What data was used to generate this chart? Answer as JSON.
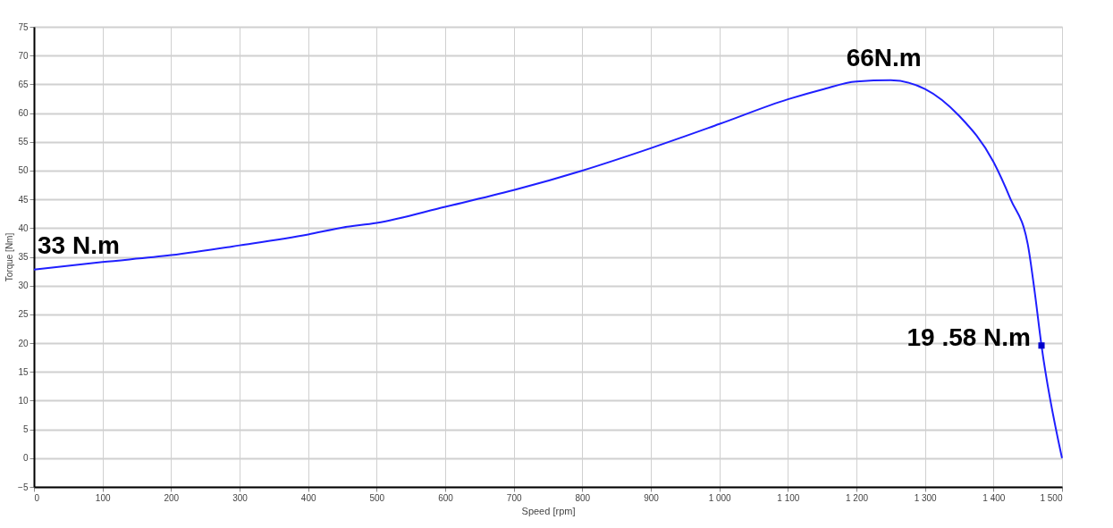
{
  "chart_data": {
    "type": "line",
    "xlabel": "Speed [rpm]",
    "ylabel": "Torque [Nm]",
    "xlim": [
      0,
      1500
    ],
    "ylim": [
      -5,
      75
    ],
    "xticks": [
      0,
      100,
      200,
      300,
      400,
      500,
      600,
      700,
      800,
      900,
      {
        "value": 1000,
        "label": "1 000"
      },
      {
        "value": 1100,
        "label": "1 100"
      },
      {
        "value": 1200,
        "label": "1 200"
      },
      {
        "value": 1300,
        "label": "1 300"
      },
      {
        "value": 1400,
        "label": "1 400"
      },
      {
        "value": 1500,
        "label": "1 500"
      }
    ],
    "yticks": [
      -5,
      0,
      5,
      10,
      15,
      20,
      25,
      30,
      35,
      40,
      45,
      50,
      55,
      60,
      65,
      70,
      75
    ],
    "grid": true,
    "line_style": "solid",
    "series": [
      {
        "color": "#1f1fff",
        "type": "line",
        "marker": "none",
        "x": [
          0,
          100,
          200,
          300,
          400,
          450,
          500,
          600,
          700,
          800,
          900,
          1000,
          1100,
          1150,
          1200,
          1250,
          1300,
          1350,
          1400,
          1425,
          1450,
          1460,
          1470,
          1500
        ],
        "values": [
          32.8,
          34.1,
          35.3,
          37.0,
          38.9,
          40.1,
          40.9,
          43.7,
          46.6,
          50.0,
          53.9,
          58.1,
          62.4,
          64.1,
          65.5,
          65.7,
          64.2,
          59.5,
          51.5,
          45.0,
          37.2,
          29.0,
          19.6,
          0
        ]
      },
      {
        "color": "#0000cc",
        "type": "scatter",
        "marker": "square",
        "x": [
          1470
        ],
        "values": [
          19.58
        ]
      }
    ],
    "annotations": [
      {
        "text": "33 N.m",
        "x": 0,
        "y": 33
      },
      {
        "text": "66N.m",
        "x": 1240,
        "y": 66
      },
      {
        "text": "19 .58 N.m",
        "x": 1470,
        "y": 19.58
      }
    ]
  }
}
